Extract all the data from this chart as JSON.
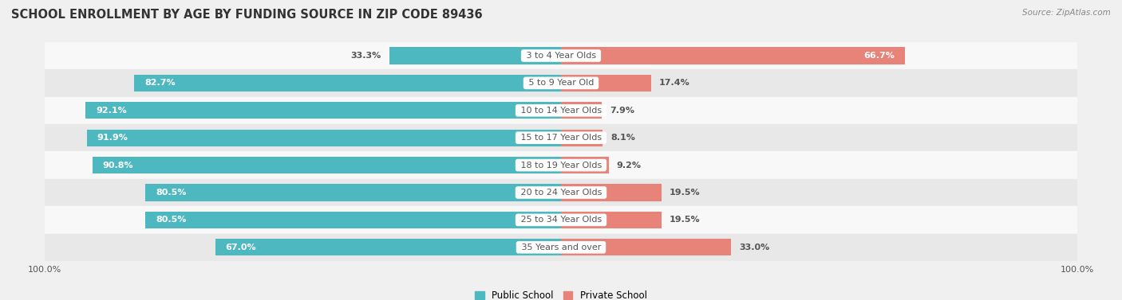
{
  "title": "SCHOOL ENROLLMENT BY AGE BY FUNDING SOURCE IN ZIP CODE 89436",
  "source": "Source: ZipAtlas.com",
  "categories": [
    "3 to 4 Year Olds",
    "5 to 9 Year Old",
    "10 to 14 Year Olds",
    "15 to 17 Year Olds",
    "18 to 19 Year Olds",
    "20 to 24 Year Olds",
    "25 to 34 Year Olds",
    "35 Years and over"
  ],
  "public_values": [
    33.3,
    82.7,
    92.1,
    91.9,
    90.8,
    80.5,
    80.5,
    67.0
  ],
  "private_values": [
    66.7,
    17.4,
    7.9,
    8.1,
    9.2,
    19.5,
    19.5,
    33.0
  ],
  "public_color": "#4db8bf",
  "private_color": "#e8837a",
  "public_label": "Public School",
  "private_label": "Private School",
  "bg_color": "#f0f0f0",
  "row_bg_light": "#f8f8f8",
  "row_bg_dark": "#e8e8e8",
  "bar_height": 0.62,
  "value_fontsize": 8.0,
  "title_fontsize": 10.5,
  "label_fontsize": 8.0,
  "axis_label_fontsize": 8.0,
  "text_color_white": "#ffffff",
  "text_color_dark": "#555555",
  "total_width": 100
}
